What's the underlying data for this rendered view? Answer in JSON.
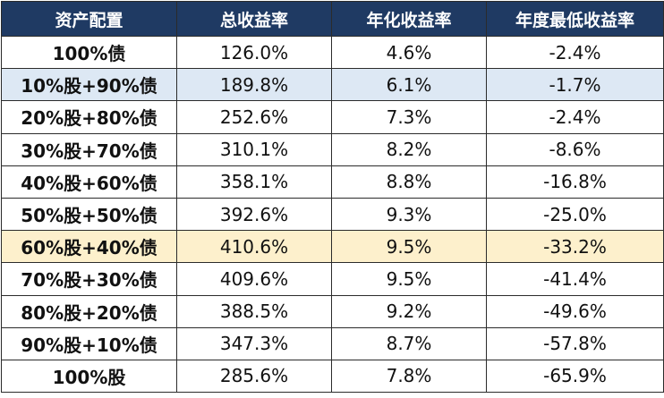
{
  "table": {
    "header": [
      "资产配置",
      "总收益率",
      "年化收益率",
      "年度最低收益率"
    ],
    "rows": [
      [
        "100%债",
        "126.0%",
        "4.6%",
        "-2.4%"
      ],
      [
        "10%股+90%债",
        "189.8%",
        "6.1%",
        "-1.7%"
      ],
      [
        "20%股+80%债",
        "252.6%",
        "7.3%",
        "-2.4%"
      ],
      [
        "30%股+70%债",
        "310.1%",
        "8.2%",
        "-8.6%"
      ],
      [
        "40%股+60%债",
        "358.1%",
        "8.8%",
        "-16.8%"
      ],
      [
        "50%股+50%债",
        "392.6%",
        "9.3%",
        "-25.0%"
      ],
      [
        "60%股+40%债",
        "410.6%",
        "9.5%",
        "-33.2%"
      ],
      [
        "70%股+30%债",
        "409.6%",
        "9.5%",
        "-41.4%"
      ],
      [
        "80%股+20%债",
        "388.5%",
        "9.2%",
        "-49.6%"
      ],
      [
        "90%股+10%债",
        "347.3%",
        "8.7%",
        "-57.8%"
      ],
      [
        "100%股",
        "285.6%",
        "7.8%",
        "-65.9%"
      ]
    ]
  }
}
